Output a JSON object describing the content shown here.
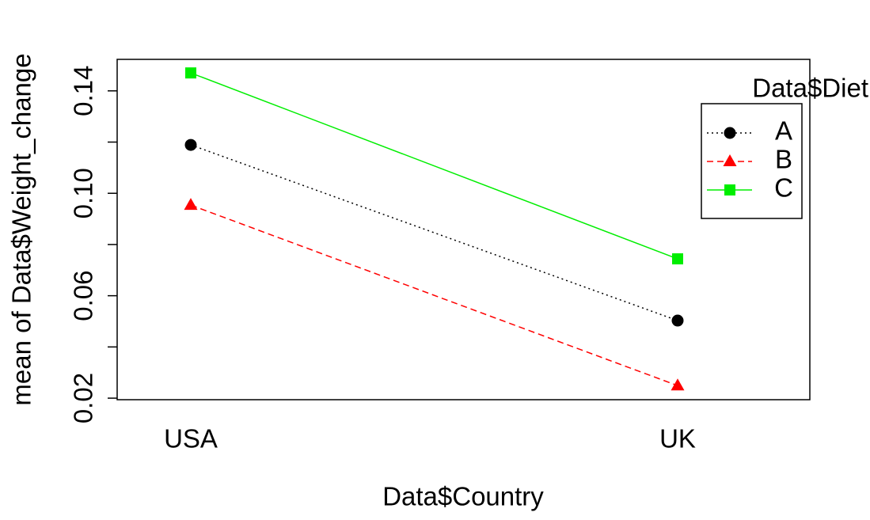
{
  "chart_data": {
    "type": "line",
    "x_label": "Data$Country",
    "y_label": "mean of  Data$Weight_change",
    "categories": [
      "USA",
      "UK"
    ],
    "series": [
      {
        "name": "A",
        "color": "#000000",
        "line_style": "dotted",
        "marker": "circle",
        "values": [
          0.1189,
          0.0503
        ]
      },
      {
        "name": "B",
        "color": "#ff0000",
        "line_style": "dashed",
        "marker": "triangle",
        "values": [
          0.0954,
          0.0249
        ]
      },
      {
        "name": "C",
        "color": "#00ee00",
        "line_style": "solid",
        "marker": "square",
        "values": [
          0.147,
          0.0744
        ]
      }
    ],
    "legend_title": "Data$Diet",
    "legend": "top-right",
    "ylim": [
      0.0194,
      0.1523
    ],
    "yticks": [
      0.02,
      0.06,
      {
        "value": 0.1,
        "label": "0.10"
      },
      0.14
    ],
    "yticks_unlabeled": [
      0.04,
      0.08,
      0.12
    ]
  }
}
